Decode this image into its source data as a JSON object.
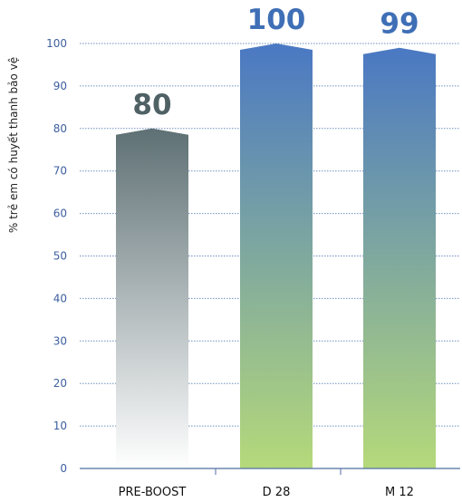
{
  "chart_data": {
    "type": "bar",
    "categories": [
      "PRE-BOOST",
      "D 28",
      "M 12"
    ],
    "values": [
      80,
      100,
      99
    ],
    "data_labels": [
      "80",
      "100",
      "99"
    ],
    "title": "",
    "xlabel": "",
    "ylabel": "% trẻ em có huyết thanh bảo vệ",
    "ylim": [
      0,
      100
    ],
    "yticks": [
      0,
      10,
      20,
      30,
      40,
      50,
      60,
      70,
      80,
      90,
      100
    ],
    "grid": true,
    "legend": "none",
    "colors": {
      "pre_boost_top": "#5e7074",
      "pre_boost_bottom": "#ffffff",
      "boost_top": "#4a78c3",
      "boost_bottom": "#b5d97a",
      "pre_boost_label": "#4f6164",
      "boost_label": "#3f6fb6",
      "tick_text": "#3d5fa0",
      "grid": "#6f8fbe",
      "axis": "#4f6fa5"
    }
  }
}
